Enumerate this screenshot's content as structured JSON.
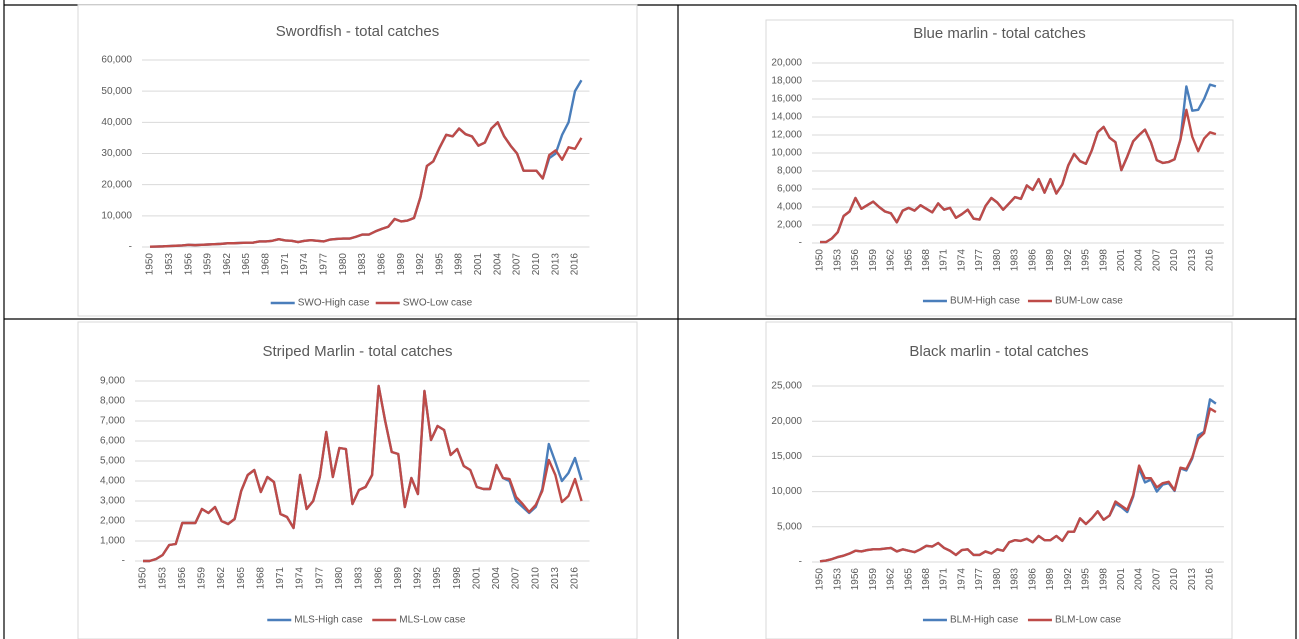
{
  "chart_data": [
    {
      "type": "line",
      "title": "Swordfish - total catches",
      "categories": [
        "1950",
        null,
        null,
        "1953",
        null,
        null,
        "1956",
        null,
        null,
        "1959",
        null,
        null,
        "1962",
        null,
        null,
        "1965",
        null,
        null,
        "1968",
        null,
        null,
        "1971",
        null,
        null,
        "1974",
        null,
        null,
        "1977",
        null,
        null,
        "1980",
        null,
        null,
        "1983",
        null,
        null,
        "1986",
        null,
        null,
        "1989",
        null,
        null,
        "1992",
        null,
        null,
        "1995",
        null,
        null,
        "1998",
        null,
        null,
        "2001",
        null,
        null,
        "2004",
        null,
        null,
        "2007",
        null,
        null,
        "2010",
        null,
        null,
        "2013",
        null,
        null,
        "2016",
        null
      ],
      "series": [
        {
          "name": "SWO-High case",
          "color": "#4a7ebb",
          "values": [
            100,
            150,
            200,
            300,
            400,
            500,
            700,
            600,
            700,
            800,
            900,
            1000,
            1200,
            1200,
            1300,
            1400,
            1400,
            1800,
            1800,
            2000,
            2500,
            2100,
            2000,
            1600,
            2000,
            2200,
            2000,
            1800,
            2400,
            2600,
            2700,
            2700,
            3300,
            4000,
            4000,
            5000,
            5800,
            6500,
            9000,
            8200,
            8500,
            9300,
            16000,
            26000,
            27500,
            32000,
            36000,
            35500,
            38000,
            36200,
            35500,
            32500,
            33500,
            38000,
            40000,
            35500,
            32500,
            30000,
            24500,
            24500,
            24500,
            22000,
            28500,
            30000,
            36000,
            40000,
            50000,
            53500
          ]
        },
        {
          "name": "SWO-Low case",
          "color": "#be4b48",
          "values": [
            100,
            150,
            200,
            300,
            400,
            500,
            700,
            600,
            700,
            800,
            900,
            1000,
            1200,
            1200,
            1300,
            1400,
            1400,
            1800,
            1800,
            2000,
            2500,
            2100,
            2000,
            1600,
            2000,
            2200,
            2000,
            1800,
            2400,
            2600,
            2700,
            2700,
            3300,
            4000,
            4000,
            5000,
            5800,
            6500,
            9000,
            8200,
            8500,
            9300,
            16000,
            26000,
            27500,
            32000,
            36000,
            35500,
            38000,
            36200,
            35500,
            32500,
            33500,
            38000,
            40000,
            35500,
            32500,
            30000,
            24500,
            24500,
            24500,
            22000,
            29500,
            31000,
            28000,
            32000,
            31500,
            35000
          ]
        }
      ],
      "ylim": [
        0,
        60000
      ],
      "yticks": [
        {
          "value": 0,
          "label": "-"
        },
        {
          "value": 10000,
          "label": "10,000"
        },
        {
          "value": 20000,
          "label": "20,000"
        },
        {
          "value": 30000,
          "label": "30,000"
        },
        {
          "value": 40000,
          "label": "40,000"
        },
        {
          "value": 50000,
          "label": "50,000"
        },
        {
          "value": 60000,
          "label": "60,000"
        }
      ],
      "grid": true,
      "legend": "bottom"
    },
    {
      "type": "line",
      "title": "Blue marlin - total catches",
      "categories": [
        "1950",
        null,
        null,
        "1953",
        null,
        null,
        "1956",
        null,
        null,
        "1959",
        null,
        null,
        "1962",
        null,
        null,
        "1965",
        null,
        null,
        "1968",
        null,
        null,
        "1971",
        null,
        null,
        "1974",
        null,
        null,
        "1977",
        null,
        null,
        "1980",
        null,
        null,
        "1983",
        null,
        null,
        "1986",
        null,
        null,
        "1989",
        null,
        null,
        "1992",
        null,
        null,
        "1995",
        null,
        null,
        "1998",
        null,
        null,
        "2001",
        null,
        null,
        "2004",
        null,
        null,
        "2007",
        null,
        null,
        "2010",
        null,
        null,
        "2013",
        null,
        null,
        "2016",
        null
      ],
      "series": [
        {
          "name": "BUM-High case",
          "color": "#4a7ebb",
          "values": [
            100,
            100,
            500,
            1200,
            3000,
            3500,
            5000,
            3800,
            4200,
            4600,
            4000,
            3500,
            3300,
            2300,
            3600,
            3900,
            3600,
            4200,
            3800,
            3400,
            4400,
            3700,
            3900,
            2800,
            3200,
            3700,
            2700,
            2600,
            4100,
            5000,
            4500,
            3700,
            4400,
            5100,
            4900,
            6400,
            5900,
            7100,
            5600,
            7100,
            5500,
            6500,
            8600,
            9900,
            9100,
            8800,
            10300,
            12300,
            12900,
            11700,
            11200,
            8100,
            9600,
            11300,
            12000,
            12600,
            11200,
            9200,
            8900,
            9000,
            9300,
            11500,
            17400,
            14700,
            14800,
            16000,
            17600,
            17400
          ]
        },
        {
          "name": "BUM-Low case",
          "color": "#be4b48",
          "values": [
            100,
            100,
            500,
            1200,
            3000,
            3500,
            5000,
            3800,
            4200,
            4600,
            4000,
            3500,
            3300,
            2300,
            3600,
            3900,
            3600,
            4200,
            3800,
            3400,
            4400,
            3700,
            3900,
            2800,
            3200,
            3700,
            2700,
            2600,
            4100,
            5000,
            4500,
            3700,
            4400,
            5100,
            4900,
            6400,
            5900,
            7100,
            5600,
            7100,
            5500,
            6500,
            8600,
            9900,
            9100,
            8800,
            10300,
            12300,
            12900,
            11700,
            11200,
            8100,
            9600,
            11300,
            12000,
            12600,
            11200,
            9200,
            8900,
            9000,
            9300,
            11500,
            14800,
            11800,
            10200,
            11600,
            12300,
            12100
          ]
        }
      ],
      "ylim": [
        0,
        20000
      ],
      "yticks": [
        {
          "value": 0,
          "label": "-"
        },
        {
          "value": 2000,
          "label": "2,000"
        },
        {
          "value": 4000,
          "label": "4,000"
        },
        {
          "value": 6000,
          "label": "6,000"
        },
        {
          "value": 8000,
          "label": "8,000"
        },
        {
          "value": 10000,
          "label": "10,000"
        },
        {
          "value": 12000,
          "label": "12,000"
        },
        {
          "value": 14000,
          "label": "14,000"
        },
        {
          "value": 16000,
          "label": "16,000"
        },
        {
          "value": 18000,
          "label": "18,000"
        },
        {
          "value": 20000,
          "label": "20,000"
        }
      ],
      "grid": true,
      "legend": "bottom"
    },
    {
      "type": "line",
      "title": "Striped Marlin - total catches",
      "categories": [
        "1950",
        null,
        null,
        "1953",
        null,
        null,
        "1956",
        null,
        null,
        "1959",
        null,
        null,
        "1962",
        null,
        null,
        "1965",
        null,
        null,
        "1968",
        null,
        null,
        "1971",
        null,
        null,
        "1974",
        null,
        null,
        "1977",
        null,
        null,
        "1980",
        null,
        null,
        "1983",
        null,
        null,
        "1986",
        null,
        null,
        "1989",
        null,
        null,
        "1992",
        null,
        null,
        "1995",
        null,
        null,
        "1998",
        null,
        null,
        "2001",
        null,
        null,
        "2004",
        null,
        null,
        "2007",
        null,
        null,
        "2010",
        null,
        null,
        "2013",
        null,
        null,
        "2016",
        null
      ],
      "series": [
        {
          "name": "MLS-High case",
          "color": "#4a7ebb",
          "values": [
            0,
            0,
            100,
            300,
            800,
            850,
            1900,
            1900,
            1900,
            2600,
            2400,
            2700,
            2000,
            1850,
            2100,
            3500,
            4300,
            4550,
            3450,
            4200,
            3950,
            2350,
            2200,
            1650,
            4300,
            2600,
            3000,
            4200,
            6450,
            4200,
            5650,
            5600,
            2850,
            3550,
            3700,
            4300,
            8750,
            7000,
            5450,
            5350,
            2700,
            4150,
            3350,
            8500,
            6050,
            6750,
            6550,
            5300,
            5600,
            4750,
            4550,
            3700,
            3600,
            3600,
            4800,
            4150,
            4000,
            3000,
            2700,
            2400,
            2700,
            3600,
            5850,
            4950,
            4000,
            4400,
            5150,
            4050
          ]
        },
        {
          "name": "MLS-Low case",
          "color": "#be4b48",
          "values": [
            0,
            0,
            100,
            300,
            800,
            850,
            1900,
            1900,
            1900,
            2600,
            2400,
            2700,
            2000,
            1850,
            2100,
            3500,
            4300,
            4550,
            3450,
            4200,
            3950,
            2350,
            2200,
            1650,
            4300,
            2600,
            3000,
            4200,
            6450,
            4200,
            5650,
            5600,
            2850,
            3550,
            3700,
            4300,
            8750,
            7000,
            5450,
            5350,
            2700,
            4150,
            3350,
            8500,
            6050,
            6750,
            6550,
            5300,
            5600,
            4750,
            4550,
            3700,
            3600,
            3600,
            4800,
            4150,
            4100,
            3200,
            2850,
            2450,
            2800,
            3500,
            5050,
            4300,
            2950,
            3250,
            4100,
            3000
          ]
        }
      ],
      "ylim": [
        0,
        9000
      ],
      "yticks": [
        {
          "value": 0,
          "label": "-"
        },
        {
          "value": 1000,
          "label": "1,000"
        },
        {
          "value": 2000,
          "label": "2,000"
        },
        {
          "value": 3000,
          "label": "3,000"
        },
        {
          "value": 4000,
          "label": "4,000"
        },
        {
          "value": 5000,
          "label": "5,000"
        },
        {
          "value": 6000,
          "label": "6,000"
        },
        {
          "value": 7000,
          "label": "7,000"
        },
        {
          "value": 8000,
          "label": "8,000"
        },
        {
          "value": 9000,
          "label": "9,000"
        }
      ],
      "grid": true,
      "legend": "bottom"
    },
    {
      "type": "line",
      "title": "Black marlin - total catches",
      "categories": [
        "1950",
        null,
        null,
        "1953",
        null,
        null,
        "1956",
        null,
        null,
        "1959",
        null,
        null,
        "1962",
        null,
        null,
        "1965",
        null,
        null,
        "1968",
        null,
        null,
        "1971",
        null,
        null,
        "1974",
        null,
        null,
        "1977",
        null,
        null,
        "1980",
        null,
        null,
        "1983",
        null,
        null,
        "1986",
        null,
        null,
        "1989",
        null,
        null,
        "1992",
        null,
        null,
        "1995",
        null,
        null,
        "1998",
        null,
        null,
        "2001",
        null,
        null,
        "2004",
        null,
        null,
        "2007",
        null,
        null,
        "2010",
        null,
        null,
        "2013",
        null,
        null,
        "2016",
        null
      ],
      "series": [
        {
          "name": "BLM-High case",
          "color": "#4a7ebb",
          "values": [
            100,
            200,
            400,
            700,
            900,
            1200,
            1600,
            1500,
            1700,
            1800,
            1800,
            1900,
            2000,
            1500,
            1800,
            1600,
            1400,
            1800,
            2300,
            2200,
            2700,
            2000,
            1600,
            1000,
            1700,
            1800,
            1000,
            1000,
            1500,
            1200,
            1800,
            1600,
            2800,
            3100,
            3000,
            3300,
            2800,
            3700,
            3100,
            3100,
            3700,
            3000,
            4300,
            4300,
            6200,
            5400,
            6200,
            7200,
            6000,
            6600,
            8300,
            7800,
            7100,
            9300,
            13300,
            11300,
            11700,
            10000,
            11000,
            11200,
            10100,
            13300,
            13000,
            14700,
            18000,
            18500,
            23100,
            22500
          ]
        },
        {
          "name": "BLM-Low case",
          "color": "#be4b48",
          "values": [
            100,
            200,
            400,
            700,
            900,
            1200,
            1600,
            1500,
            1700,
            1800,
            1800,
            1900,
            2000,
            1500,
            1800,
            1600,
            1400,
            1800,
            2300,
            2200,
            2700,
            2000,
            1600,
            1000,
            1700,
            1800,
            1000,
            1000,
            1500,
            1200,
            1800,
            1600,
            2800,
            3100,
            3000,
            3300,
            2800,
            3700,
            3100,
            3100,
            3700,
            3000,
            4300,
            4300,
            6200,
            5400,
            6200,
            7200,
            6000,
            6600,
            8600,
            8000,
            7400,
            9500,
            13700,
            11900,
            11900,
            10600,
            11200,
            11400,
            10200,
            13400,
            13200,
            14900,
            17500,
            18300,
            21800,
            21300
          ]
        }
      ],
      "ylim": [
        0,
        25000
      ],
      "yticks": [
        {
          "value": 0,
          "label": "-"
        },
        {
          "value": 5000,
          "label": "5,000"
        },
        {
          "value": 10000,
          "label": "10,000"
        },
        {
          "value": 15000,
          "label": "15,000"
        },
        {
          "value": 20000,
          "label": "20,000"
        },
        {
          "value": 25000,
          "label": "25,000"
        }
      ],
      "grid": true,
      "legend": "bottom"
    }
  ]
}
